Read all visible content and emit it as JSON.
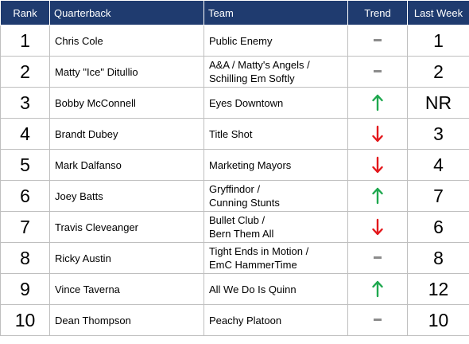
{
  "headers": {
    "rank": "Rank",
    "quarterback": "Quarterback",
    "team": "Team",
    "trend": "Trend",
    "last_week": "Last Week"
  },
  "colors": {
    "header_bg": "#1f3b6f",
    "up": "#1fa84f",
    "down": "#e3181c",
    "flat": "#8c8c8c"
  },
  "rows": [
    {
      "rank": "1",
      "qb": "Chris Cole",
      "team": [
        "Public Enemy"
      ],
      "trend": "flat",
      "last": "1"
    },
    {
      "rank": "2",
      "qb": "Matty \"Ice\" Ditullio",
      "team": [
        "A&A / Matty's Angels /",
        "Schilling Em Softly"
      ],
      "trend": "flat",
      "last": "2"
    },
    {
      "rank": "3",
      "qb": "Bobby McConnell",
      "team": [
        "Eyes Downtown"
      ],
      "trend": "up",
      "last": "NR"
    },
    {
      "rank": "4",
      "qb": "Brandt Dubey",
      "team": [
        "Title Shot"
      ],
      "trend": "down",
      "last": "3"
    },
    {
      "rank": "5",
      "qb": "Mark Dalfanso",
      "team": [
        "Marketing Mayors"
      ],
      "trend": "down",
      "last": "4"
    },
    {
      "rank": "6",
      "qb": "Joey Batts",
      "team": [
        "Gryffindor /",
        "Cunning Stunts"
      ],
      "trend": "up",
      "last": "7"
    },
    {
      "rank": "7",
      "qb": "Travis Cleveanger",
      "team": [
        "Bullet Club /",
        "Bern Them All"
      ],
      "trend": "down",
      "last": "6"
    },
    {
      "rank": "8",
      "qb": "Ricky Austin",
      "team": [
        "Tight Ends in Motion /",
        "EmC HammerTime"
      ],
      "trend": "flat",
      "last": "8"
    },
    {
      "rank": "9",
      "qb": "Vince Taverna",
      "team": [
        "All We Do Is Quinn"
      ],
      "trend": "up",
      "last": "12"
    },
    {
      "rank": "10",
      "qb": "Dean Thompson",
      "team": [
        "Peachy Platoon"
      ],
      "trend": "flat",
      "last": "10"
    }
  ]
}
